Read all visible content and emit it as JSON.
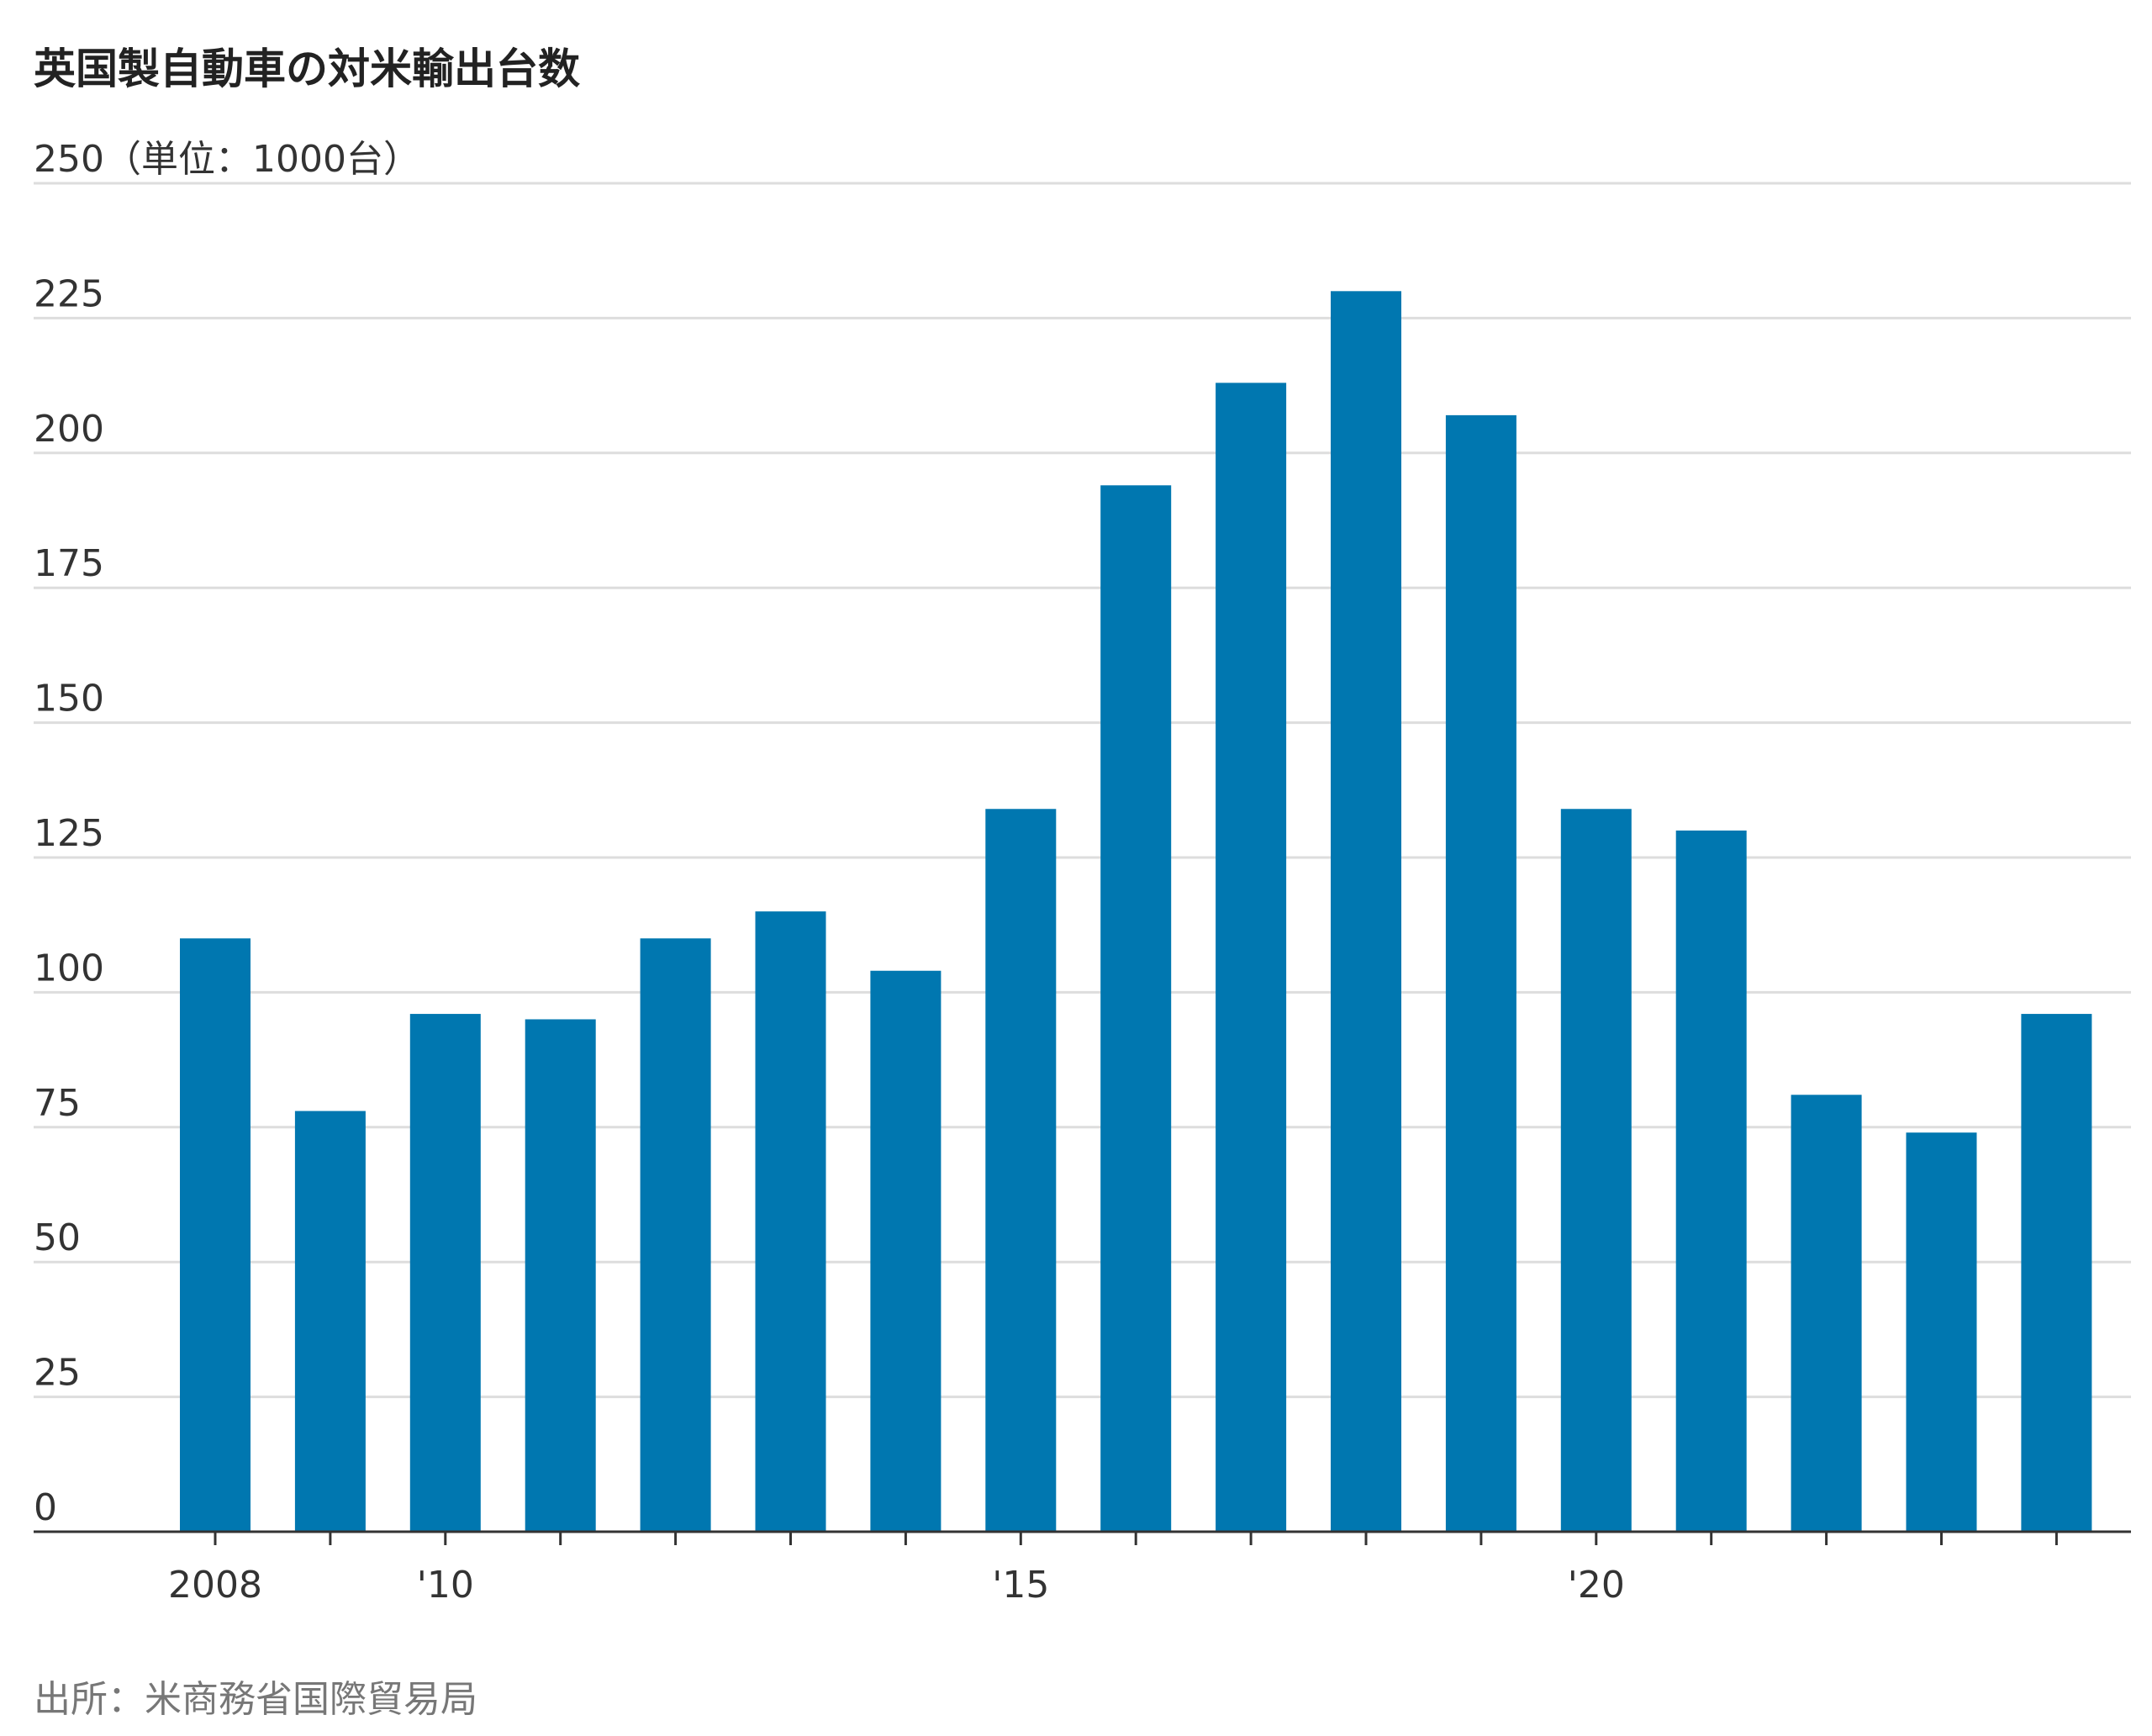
{
  "chart_data": {
    "type": "bar",
    "title": "英国製自動車の対米輸出台数",
    "unit_label": "（単位：1000台）",
    "categories": [
      "2008",
      "2009",
      "2010",
      "2011",
      "2012",
      "2013",
      "2014",
      "2015",
      "2016",
      "2017",
      "2018",
      "2019",
      "2020",
      "2021",
      "2022",
      "2023",
      "2024"
    ],
    "values": [
      110,
      78,
      96,
      95,
      110,
      115,
      104,
      134,
      194,
      213,
      230,
      207,
      134,
      130,
      81,
      74,
      96
    ],
    "x_tick_labels": [
      {
        "category": "2008",
        "label": "2008"
      },
      {
        "category": "2010",
        "label": "'10"
      },
      {
        "category": "2015",
        "label": "'15"
      },
      {
        "category": "2020",
        "label": "'20"
      }
    ],
    "y_ticks": [
      0,
      25,
      50,
      75,
      100,
      125,
      150,
      175,
      200,
      225,
      250
    ],
    "ylim": [
      0,
      250
    ],
    "xlabel": "",
    "ylabel": "",
    "grid": true,
    "bar_color": "#0077b0",
    "source": "出所：米商務省国際貿易局"
  }
}
